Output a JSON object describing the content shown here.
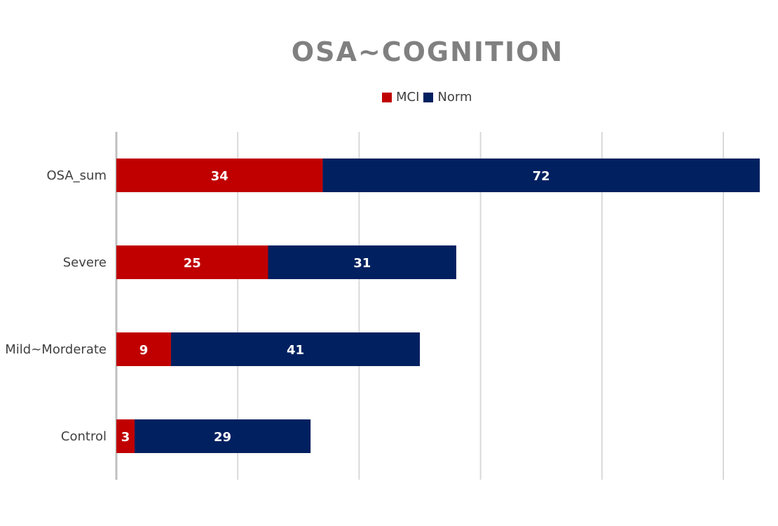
{
  "chart_data": {
    "type": "bar",
    "orientation": "horizontal",
    "stacked": true,
    "title": "OSA~COGNITION",
    "categories": [
      "OSA_sum",
      "Severe",
      "Mild~Morderate",
      "Control"
    ],
    "series": [
      {
        "name": "MCI",
        "values": [
          34,
          25,
          9,
          3
        ],
        "color": "#c00000"
      },
      {
        "name": "Norm",
        "values": [
          72,
          31,
          41,
          29
        ],
        "color": "#002060"
      }
    ],
    "xlim": [
      0,
      120
    ],
    "grid": true,
    "legend": "top-center"
  }
}
